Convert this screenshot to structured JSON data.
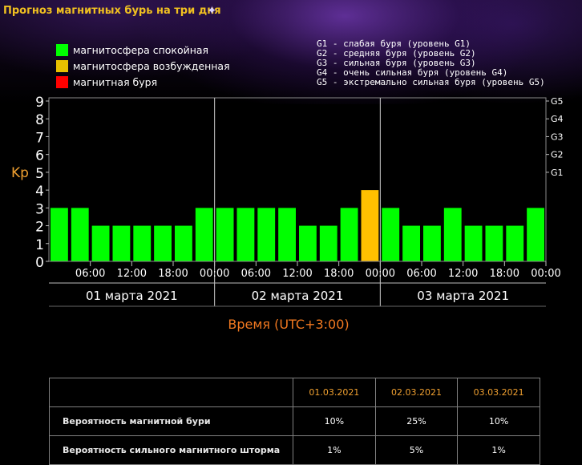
{
  "page": {
    "title": "Прогноз магнитных бурь на три дня"
  },
  "legend": {
    "items": [
      {
        "label": "магнитосфера спокойная",
        "color": "#00ff00"
      },
      {
        "label": "магнитосфера возбужденная",
        "color": "#e8c000"
      },
      {
        "label": "магнитная буря",
        "color": "#ff0000"
      }
    ],
    "g_levels": [
      "G1 - слабая буря (уровень G1)",
      "G2 - средняя буря (уровень G2)",
      "G3 - сильная буря (уровень G3)",
      "G4 - очень сильная буря (уровень G4)",
      "G5 - экстремально сильная буря (уровень G5)"
    ]
  },
  "chart_data": {
    "type": "bar",
    "ylabel": "Kp",
    "xlabel": "Время (UTC+3:00)",
    "ylim": [
      0,
      9
    ],
    "yticks": [
      "0",
      "1",
      "2",
      "3",
      "4",
      "5",
      "6",
      "7",
      "8",
      "9"
    ],
    "g_ticks": [
      {
        "label": "G1",
        "kp": 5
      },
      {
        "label": "G2",
        "kp": 6
      },
      {
        "label": "G3",
        "kp": 7
      },
      {
        "label": "G4",
        "kp": 8
      },
      {
        "label": "G5",
        "kp": 9
      }
    ],
    "time_ticks": [
      "06:00",
      "12:00",
      "18:00",
      "00:00",
      "06:00",
      "12:00",
      "18:00",
      "00:00",
      "06:00",
      "12:00",
      "18:00",
      "00:00"
    ],
    "days": [
      "01 марта 2021",
      "02 марта 2021",
      "03 марта 2021"
    ],
    "values": [
      3,
      3,
      2,
      2,
      2,
      2,
      2,
      3,
      3,
      3,
      3,
      3,
      2,
      2,
      3,
      4,
      3,
      2,
      2,
      3,
      2,
      2,
      2,
      3
    ],
    "colors": {
      "quiet": "#00ff00",
      "active": "#ffc000",
      "storm": "#ff0000"
    }
  },
  "prob_table": {
    "dates": [
      "01.03.2021",
      "02.03.2021",
      "03.03.2021"
    ],
    "rows": [
      {
        "label": "Вероятность магнитной бури",
        "values": [
          "10%",
          "25%",
          "10%"
        ]
      },
      {
        "label": "Вероятность сильного магнитного шторма",
        "values": [
          "1%",
          "5%",
          "1%"
        ]
      }
    ]
  }
}
